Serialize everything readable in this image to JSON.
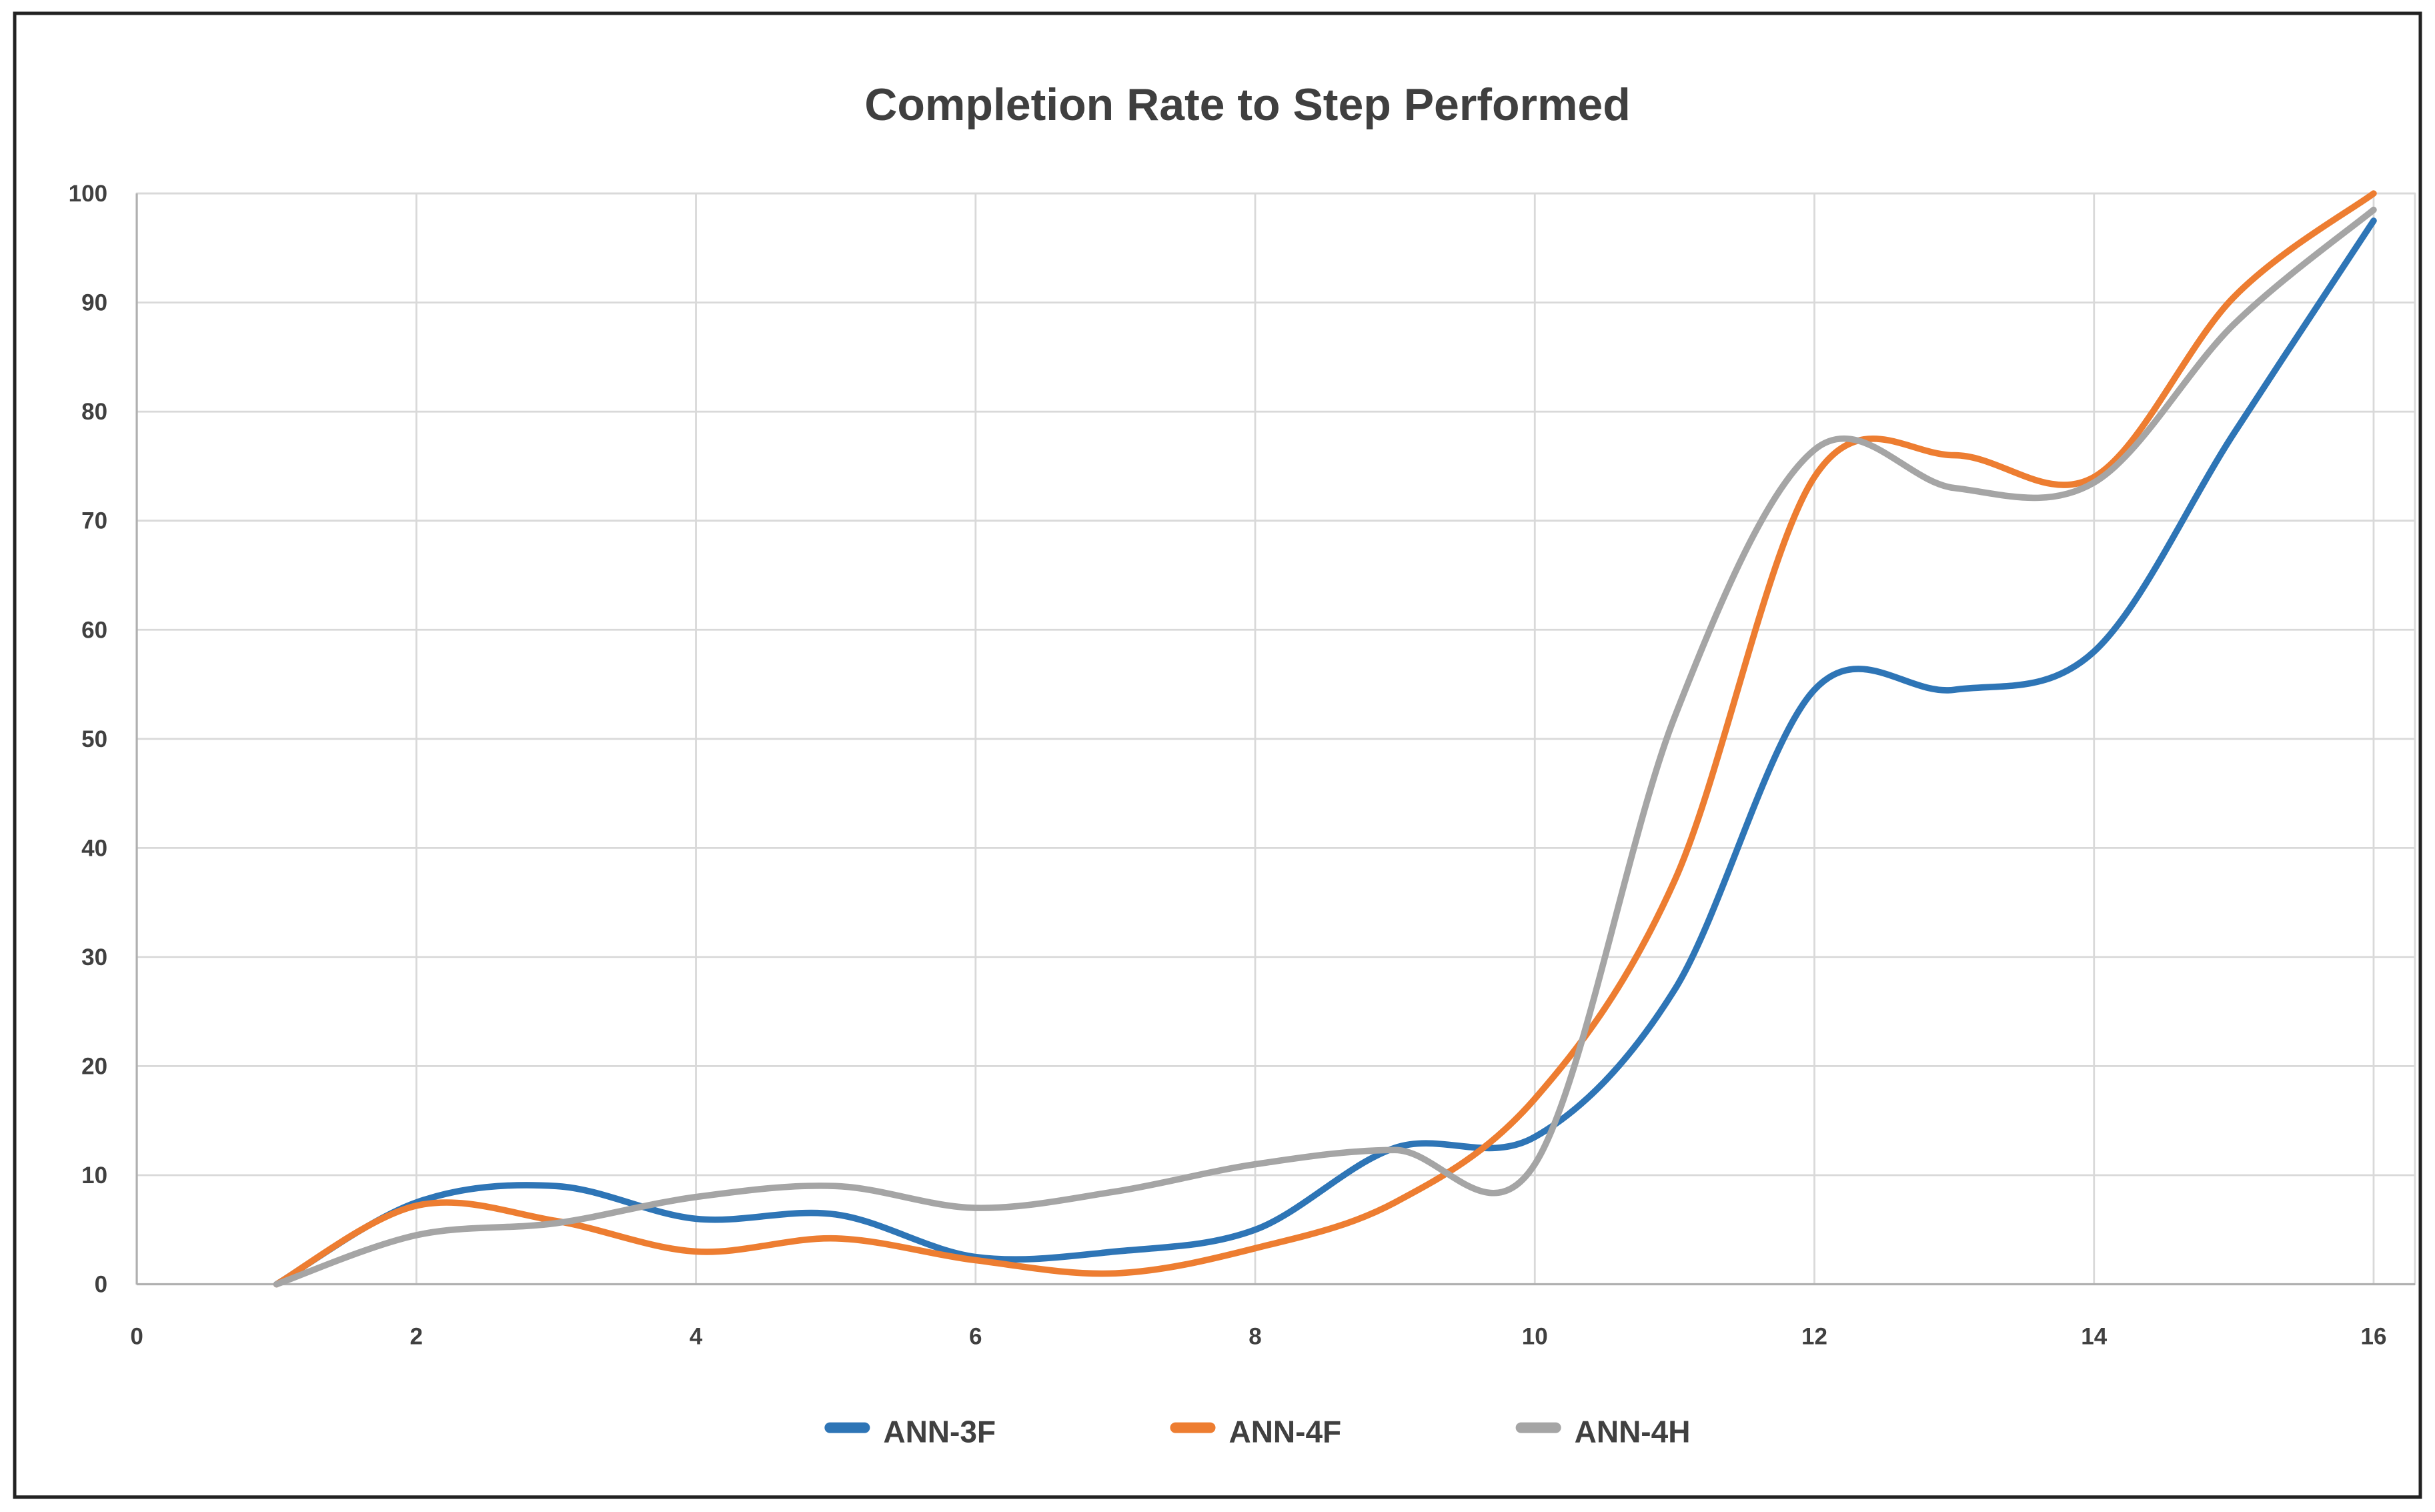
{
  "chart": {
    "frame_border_color": "#222222",
    "background": "#ffffff"
  },
  "chart_data": {
    "type": "line",
    "title": "Completion Rate to Step Performed",
    "title_color": "#3f3f3f",
    "x": [
      1,
      2,
      3,
      4,
      5,
      6,
      7,
      8,
      9,
      10,
      11,
      12,
      13,
      14,
      15,
      16
    ],
    "series": [
      {
        "name": "ANN-3F",
        "color": "#2E75B6",
        "values": [
          0,
          7.5,
          9,
          6,
          6.4,
          2.5,
          3,
          5,
          12.5,
          13.5,
          27,
          54.5,
          54.5,
          58,
          78,
          97.5
        ]
      },
      {
        "name": "ANN-4F",
        "color": "#ED7D31",
        "values": [
          0,
          7.2,
          5.8,
          3,
          4.2,
          2.2,
          1,
          3.3,
          7.5,
          17,
          37,
          74,
          76,
          74,
          90.5,
          100
        ]
      },
      {
        "name": "ANN-4H",
        "color": "#A5A5A5",
        "values": [
          0,
          4.5,
          5.6,
          8,
          9,
          7,
          8.5,
          11,
          12.3,
          11,
          52,
          76.5,
          73,
          73.5,
          88,
          98.5
        ]
      }
    ],
    "xlabel": "",
    "ylabel": "",
    "xlim": [
      0,
      16
    ],
    "ylim": [
      0,
      100
    ],
    "xticks": [
      0,
      2,
      4,
      6,
      8,
      10,
      12,
      14,
      16
    ],
    "yticks": [
      0,
      10,
      20,
      30,
      40,
      50,
      60,
      70,
      80,
      90,
      100
    ],
    "grid": true,
    "smooth": true,
    "legend_position": "bottom",
    "grid_color": "#d9d9d9",
    "axis_color": "#b0b0b0",
    "tick_color": "#404040",
    "line_width": 4.8
  }
}
